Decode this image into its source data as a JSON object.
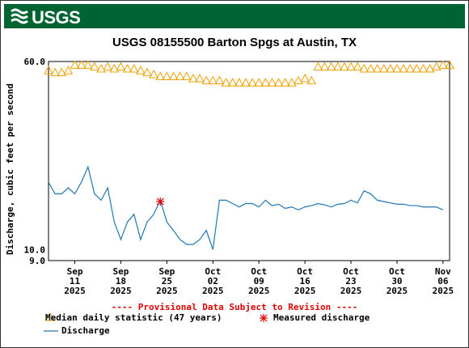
{
  "header": {
    "logo_text": "USGS"
  },
  "chart_data": {
    "type": "line",
    "title": "USGS 08155500 Barton Spgs at Austin, TX",
    "ylabel": "Discharge, cubic feet per second",
    "yscale": "log",
    "ylim": [
      9.0,
      60.0
    ],
    "y_tick_labels": [
      "60.0",
      "10.0",
      "9.0"
    ],
    "x_tick_labels": [
      {
        "month": "Sep",
        "day": "11",
        "year": "2025"
      },
      {
        "month": "Sep",
        "day": "18",
        "year": "2025"
      },
      {
        "month": "Sep",
        "day": "25",
        "year": "2025"
      },
      {
        "month": "Oct",
        "day": "02",
        "year": "2025"
      },
      {
        "month": "Oct",
        "day": "09",
        "year": "2025"
      },
      {
        "month": "Oct",
        "day": "16",
        "year": "2025"
      },
      {
        "month": "Oct",
        "day": "23",
        "year": "2025"
      },
      {
        "month": "Oct",
        "day": "30",
        "year": "2025"
      },
      {
        "month": "Nov",
        "day": "06",
        "year": "2025"
      }
    ],
    "xlim": [
      "2025-09-07",
      "2025-11-07"
    ],
    "series": [
      {
        "name": "Median daily statistic (47 years)",
        "style": "triangle-markers",
        "color": "#f0a000",
        "x": [
          "2025-09-07",
          "2025-09-08",
          "2025-09-09",
          "2025-09-10",
          "2025-09-11",
          "2025-09-12",
          "2025-09-13",
          "2025-09-14",
          "2025-09-15",
          "2025-09-16",
          "2025-09-17",
          "2025-09-18",
          "2025-09-19",
          "2025-09-20",
          "2025-09-21",
          "2025-09-22",
          "2025-09-23",
          "2025-09-24",
          "2025-09-25",
          "2025-09-26",
          "2025-09-27",
          "2025-09-28",
          "2025-09-29",
          "2025-09-30",
          "2025-10-01",
          "2025-10-02",
          "2025-10-03",
          "2025-10-04",
          "2025-10-05",
          "2025-10-06",
          "2025-10-07",
          "2025-10-08",
          "2025-10-09",
          "2025-10-10",
          "2025-10-11",
          "2025-10-12",
          "2025-10-13",
          "2025-10-14",
          "2025-10-15",
          "2025-10-16",
          "2025-10-17",
          "2025-10-18",
          "2025-10-19",
          "2025-10-20",
          "2025-10-21",
          "2025-10-22",
          "2025-10-23",
          "2025-10-24",
          "2025-10-25",
          "2025-10-26",
          "2025-10-27",
          "2025-10-28",
          "2025-10-29",
          "2025-10-30",
          "2025-10-31",
          "2025-11-01",
          "2025-11-02",
          "2025-11-03",
          "2025-11-04",
          "2025-11-05",
          "2025-11-06",
          "2025-11-07"
        ],
        "y": [
          55,
          54,
          54,
          55,
          58,
          58,
          58,
          57,
          56,
          57,
          56,
          57,
          56,
          56,
          55,
          54,
          53,
          52,
          52,
          52,
          52,
          52,
          51,
          51,
          50,
          50,
          50,
          49,
          49,
          49,
          49,
          49,
          49,
          49,
          49,
          49,
          49,
          49,
          50,
          51,
          50,
          57,
          57,
          57,
          57,
          57,
          57,
          57,
          56,
          56,
          56,
          56,
          56,
          56,
          56,
          56,
          56,
          56,
          56,
          57,
          58,
          58
        ]
      },
      {
        "name": "Discharge",
        "style": "line",
        "color": "#1f77b4",
        "x": [
          "2025-09-07",
          "2025-09-08",
          "2025-09-09",
          "2025-09-10",
          "2025-09-11",
          "2025-09-12",
          "2025-09-13",
          "2025-09-14",
          "2025-09-15",
          "2025-09-16",
          "2025-09-17",
          "2025-09-18",
          "2025-09-19",
          "2025-09-20",
          "2025-09-21",
          "2025-09-22",
          "2025-09-23",
          "2025-09-24",
          "2025-09-25",
          "2025-09-26",
          "2025-09-27",
          "2025-09-28",
          "2025-09-29",
          "2025-09-30",
          "2025-10-01",
          "2025-10-02",
          "2025-10-03",
          "2025-10-04",
          "2025-10-05",
          "2025-10-06",
          "2025-10-07",
          "2025-10-08",
          "2025-10-09",
          "2025-10-10",
          "2025-10-11",
          "2025-10-12",
          "2025-10-13",
          "2025-10-14",
          "2025-10-15",
          "2025-10-16",
          "2025-10-17",
          "2025-10-18",
          "2025-10-19",
          "2025-10-20",
          "2025-10-21",
          "2025-10-22",
          "2025-10-23",
          "2025-10-24",
          "2025-10-25",
          "2025-10-26",
          "2025-10-27",
          "2025-10-28",
          "2025-10-29",
          "2025-10-30",
          "2025-10-31",
          "2025-11-01",
          "2025-11-02",
          "2025-11-03",
          "2025-11-04",
          "2025-11-05",
          "2025-11-06"
        ],
        "y": [
          19,
          17,
          17,
          18,
          17,
          19,
          22,
          17,
          16,
          18,
          13,
          11,
          13,
          14,
          11,
          13,
          14,
          16,
          13,
          12,
          11,
          10.5,
          10.5,
          11,
          12,
          10,
          16,
          16,
          15.5,
          15,
          15.5,
          15.5,
          15,
          16,
          15.2,
          15.4,
          14.8,
          15,
          14.6,
          15,
          15.2,
          15.5,
          15.3,
          15,
          15.4,
          15.5,
          16,
          15.6,
          17.5,
          17,
          16,
          15.8,
          15.6,
          15.4,
          15.4,
          15.2,
          15.2,
          15,
          15,
          15,
          14.6
        ]
      },
      {
        "name": "Measured discharge",
        "style": "asterisk-markers",
        "color": "#e00000",
        "x": [
          "2025-09-24"
        ],
        "y": [
          15.8
        ]
      }
    ],
    "annotations": [
      "---- Provisional Data Subject to Revision ----"
    ],
    "legend_position": "bottom-left",
    "grid": true
  },
  "legend": {
    "median_label": "Median daily statistic (47 years)",
    "measured_label": "Measured discharge",
    "discharge_label": "Discharge"
  },
  "provisional_note": "---- Provisional Data Subject to Revision ----"
}
